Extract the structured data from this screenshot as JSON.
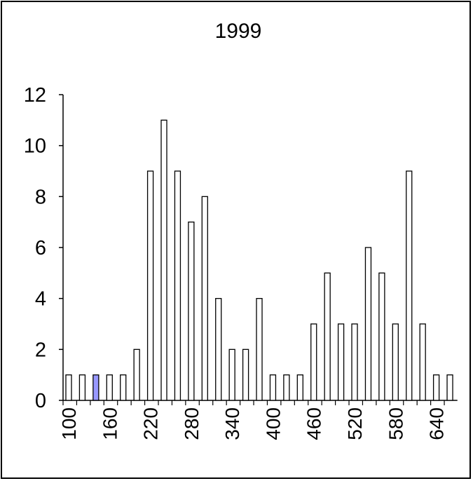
{
  "chart_data": {
    "type": "bar",
    "title": "1999",
    "xlabel": "",
    "ylabel": "",
    "bin_starts": [
      100,
      120,
      140,
      160,
      180,
      200,
      220,
      240,
      260,
      280,
      300,
      320,
      340,
      360,
      380,
      400,
      420,
      440,
      460,
      480,
      500,
      520,
      540,
      560,
      580,
      600,
      620,
      640,
      660
    ],
    "values": [
      1,
      1,
      1,
      1,
      1,
      2,
      9,
      11,
      9,
      7,
      8,
      4,
      2,
      2,
      4,
      1,
      1,
      1,
      3,
      5,
      3,
      3,
      6,
      5,
      3,
      9,
      3,
      1,
      1
    ],
    "highlight_index": 2,
    "ylim": [
      0,
      12
    ],
    "yticks": [
      0,
      2,
      4,
      6,
      8,
      10,
      12
    ],
    "xtick_labels": [
      "100",
      "160",
      "220",
      "280",
      "340",
      "400",
      "460",
      "520",
      "580",
      "640"
    ],
    "grid": false,
    "legend": "none"
  },
  "colors": {
    "bar_fill": "#ffffff",
    "bar_stroke": "#000000",
    "highlight_fill": "#9999ff",
    "axis": "#000000"
  }
}
